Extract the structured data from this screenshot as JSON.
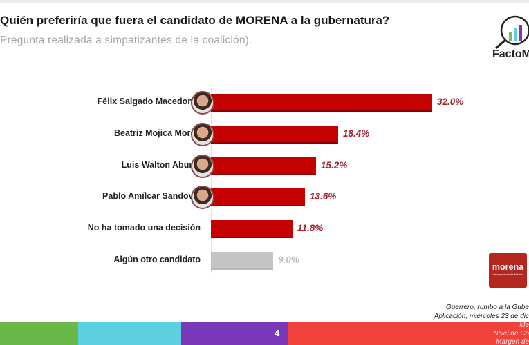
{
  "header": {
    "title": "Quién preferiría que fuera el candidato de MORENA a la gubernatura?",
    "subtitle": "Pregunta realizada a simpatizantes de la coalición)."
  },
  "brand": {
    "logo_text": "FactoM",
    "logo_icon": "magnifier-bar-chart-icon"
  },
  "party_logo": {
    "name": "morena",
    "tagline": "La esperanza de México",
    "color": "#b5261e"
  },
  "chart_data": {
    "type": "bar",
    "orientation": "horizontal",
    "title": "Quién preferiría que fuera el candidato de MORENA a la gubernatura?",
    "subtitle": "Pregunta realizada a simpatizantes de la coalición).",
    "categories": [
      "Félix Salgado Macedonio",
      "Beatriz Mojica Morga",
      "Luis Walton Aburto",
      "Pablo Amílcar Sandoval",
      "No ha tomado una decisión",
      "Algún otro candidato"
    ],
    "values": [
      32.0,
      18.4,
      15.2,
      13.6,
      11.8,
      9.0
    ],
    "value_labels": [
      "32.0%",
      "18.4%",
      "15.2%",
      "13.6%",
      "11.8%",
      "9.0%"
    ],
    "unit": "%",
    "xlabel": "",
    "ylabel": "",
    "xlim": [
      0,
      35
    ],
    "grid": false,
    "legend": null,
    "colors": [
      "#c50000",
      "#c50000",
      "#c50000",
      "#c50000",
      "#c50000",
      "#c4c4c4"
    ],
    "has_photo": [
      true,
      true,
      true,
      true,
      false,
      false
    ]
  },
  "colors": {
    "bar_red": "#c50000",
    "bar_grey": "#c4c4c4",
    "value_red": "#a3202a",
    "value_grey": "#bdbdbd",
    "strip_green": "#6ab74a",
    "strip_cyan": "#5ccfe0",
    "strip_purple": "#7838b8",
    "strip_red": "#f0413a"
  },
  "footer": {
    "note_line1": "Guerrero, rumbo a la Gube",
    "note_line2": "Aplicación, miércoles 23 de dic",
    "page_number": "4",
    "strip_line1": "Me",
    "strip_line2": "Nivel de Co",
    "strip_line3": "Margen de"
  }
}
